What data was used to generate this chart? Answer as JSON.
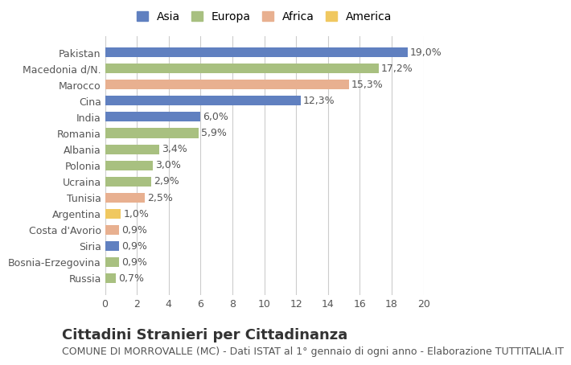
{
  "categories": [
    "Russia",
    "Bosnia-Erzegovina",
    "Siria",
    "Costa d'Avorio",
    "Argentina",
    "Tunisia",
    "Ucraina",
    "Polonia",
    "Albania",
    "Romania",
    "India",
    "Cina",
    "Marocco",
    "Macedonia d/N.",
    "Pakistan"
  ],
  "values": [
    0.7,
    0.9,
    0.9,
    0.9,
    1.0,
    2.5,
    2.9,
    3.0,
    3.4,
    5.9,
    6.0,
    12.3,
    15.3,
    17.2,
    19.0
  ],
  "labels": [
    "0,7%",
    "0,9%",
    "0,9%",
    "0,9%",
    "1,0%",
    "2,5%",
    "2,9%",
    "3,0%",
    "3,4%",
    "5,9%",
    "6,0%",
    "12,3%",
    "15,3%",
    "17,2%",
    "19,0%"
  ],
  "continents": [
    "Europa",
    "Europa",
    "Asia",
    "Africa",
    "America",
    "Africa",
    "Europa",
    "Europa",
    "Europa",
    "Europa",
    "Asia",
    "Asia",
    "Africa",
    "Europa",
    "Asia"
  ],
  "colors": {
    "Asia": "#6080C0",
    "Europa": "#A8C080",
    "Africa": "#E8B090",
    "America": "#F0C860"
  },
  "legend_order": [
    "Asia",
    "Europa",
    "Africa",
    "America"
  ],
  "title": "Cittadini Stranieri per Cittadinanza",
  "subtitle": "COMUNE DI MORROVALLE (MC) - Dati ISTAT al 1° gennaio di ogni anno - Elaborazione TUTTITALIA.IT",
  "xlim": [
    0,
    20
  ],
  "xticks": [
    0,
    2,
    4,
    6,
    8,
    10,
    12,
    14,
    16,
    18,
    20
  ],
  "background_color": "#ffffff",
  "bar_height": 0.6,
  "grid_color": "#cccccc",
  "title_fontsize": 13,
  "subtitle_fontsize": 9,
  "label_fontsize": 9,
  "tick_fontsize": 9,
  "legend_fontsize": 10
}
